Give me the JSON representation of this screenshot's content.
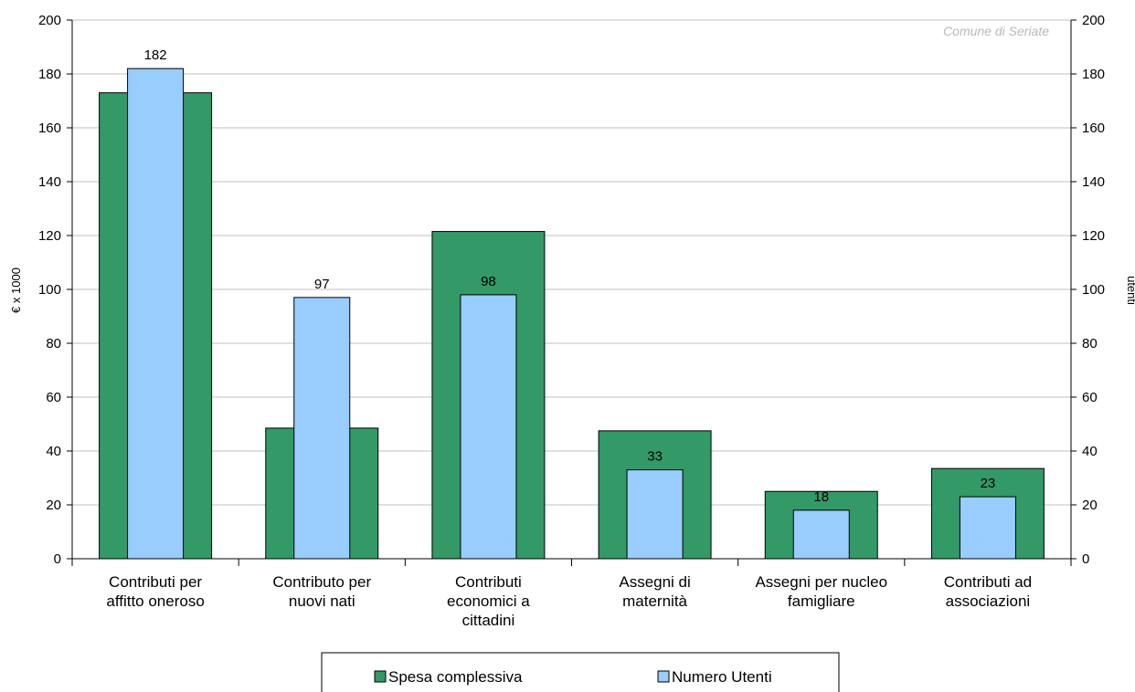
{
  "chart_data": {
    "type": "bar",
    "categories": [
      [
        "Contributi per",
        "affitto oneroso"
      ],
      [
        "Contributo per",
        "nuovi nati"
      ],
      [
        "Contributi",
        "economici a",
        "cittadini"
      ],
      [
        "Assegni di",
        "maternità"
      ],
      [
        "Assegni per nucleo",
        "famigliare"
      ],
      [
        "Contributi ad",
        "associazioni"
      ]
    ],
    "series": [
      {
        "name": "Spesa complessiva",
        "axis": "left",
        "values": [
          173,
          48.5,
          121.5,
          47.5,
          25,
          33.5
        ],
        "color": "#339966",
        "data_labels": false
      },
      {
        "name": "Numero Utenti",
        "axis": "right",
        "values": [
          182,
          97,
          98,
          33,
          18,
          23
        ],
        "color": "#99ccff",
        "data_labels": true
      }
    ],
    "ylabel": "€ x 1000",
    "y2label": "utenti",
    "ylim": [
      0,
      200
    ],
    "y2lim": [
      0,
      200
    ],
    "yticks": [
      0,
      20,
      40,
      60,
      80,
      100,
      120,
      140,
      160,
      180,
      200
    ],
    "grid": true,
    "legend_position": "bottom",
    "watermark": "Comune di Seriate"
  }
}
